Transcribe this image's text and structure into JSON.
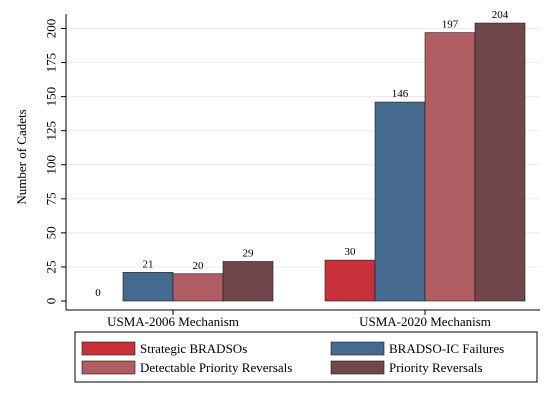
{
  "chart_data": {
    "type": "bar",
    "ylabel": "Number of Cadets",
    "xlabel": "",
    "ylim": [
      0,
      210
    ],
    "yticks": [
      0,
      25,
      50,
      75,
      100,
      125,
      150,
      175,
      200
    ],
    "grid": true,
    "legend_position": "bottom",
    "categories": [
      "USMA-2006 Mechanism",
      "USMA-2020 Mechanism"
    ],
    "series": [
      {
        "name": "Strategic BRADSOs",
        "values": [
          0,
          30
        ],
        "color": "#c8313a"
      },
      {
        "name": "BRADSO-IC Failures",
        "values": [
          21,
          146
        ],
        "color": "#466a8f"
      },
      {
        "name": "Detectable Priority Reversals",
        "values": [
          20,
          197
        ],
        "color": "#b05d63"
      },
      {
        "name": "Priority Reversals",
        "values": [
          29,
          204
        ],
        "color": "#70474b"
      }
    ]
  }
}
